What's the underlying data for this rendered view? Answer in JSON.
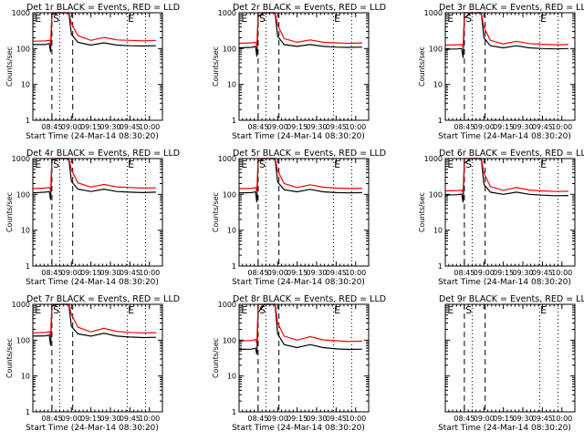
{
  "chart_data": [
    {
      "type": "line",
      "title": "Det 1r BLACK = Events, RED = LLD",
      "xlabel": "Start Time (24-Mar-14 08:30:20)",
      "ylabel": "Counts/sec",
      "yscale": "log",
      "ylim": [
        1,
        1000
      ],
      "y_ticks": [
        "1",
        "10",
        "100",
        "1000"
      ],
      "x_ticks": [
        "08:45",
        "09:00",
        "09:15",
        "09:30",
        "09:45",
        "10:00"
      ],
      "markers": [
        "E",
        "S",
        "E"
      ],
      "series": [
        {
          "name": "Events",
          "color": "#000000",
          "x": [
            "08:30",
            "08:40",
            "08:43",
            "08:44",
            "08:45",
            "08:50",
            "08:55",
            "08:58",
            "09:00",
            "09:05",
            "09:15",
            "09:25",
            "09:35",
            "09:45",
            "09:55",
            "10:05"
          ],
          "values": [
            130,
            130,
            140,
            80,
            900,
            1000,
            1000,
            1000,
            250,
            150,
            125,
            145,
            125,
            120,
            118,
            120
          ]
        },
        {
          "name": "LLD",
          "color": "#ff0000",
          "x": [
            "08:30",
            "08:40",
            "08:43",
            "08:44",
            "08:45",
            "08:50",
            "08:55",
            "08:58",
            "09:00",
            "09:05",
            "09:15",
            "09:25",
            "09:35",
            "09:45",
            "09:55",
            "10:05"
          ],
          "values": [
            160,
            165,
            170,
            150,
            1000,
            1000,
            1000,
            1000,
            500,
            230,
            170,
            205,
            175,
            170,
            165,
            170
          ]
        }
      ]
    },
    {
      "type": "line",
      "title": "Det 2r BLACK = Events, RED = LLD",
      "xlabel": "Start Time (24-Mar-14 08:30:20)",
      "ylabel": "Counts/sec",
      "yscale": "log",
      "ylim": [
        1,
        1000
      ],
      "y_ticks": [
        "1",
        "10",
        "100",
        "1000"
      ],
      "x_ticks": [
        "08:45",
        "09:00",
        "09:15",
        "09:30",
        "09:45",
        "10:00"
      ],
      "markers": [
        "E",
        "S",
        "E"
      ],
      "series": [
        {
          "name": "Events",
          "color": "#000000",
          "x": [
            "08:30",
            "08:40",
            "08:43",
            "08:44",
            "08:45",
            "08:50",
            "08:55",
            "08:58",
            "09:00",
            "09:05",
            "09:15",
            "09:25",
            "09:35",
            "09:45",
            "09:55",
            "10:05"
          ],
          "values": [
            105,
            108,
            115,
            60,
            800,
            1000,
            1000,
            1000,
            220,
            130,
            115,
            130,
            115,
            110,
            108,
            110
          ]
        },
        {
          "name": "LLD",
          "color": "#ff0000",
          "x": [
            "08:30",
            "08:40",
            "08:43",
            "08:44",
            "08:45",
            "08:50",
            "08:55",
            "08:58",
            "09:00",
            "09:05",
            "09:15",
            "09:25",
            "09:35",
            "09:45",
            "09:55",
            "10:05"
          ],
          "values": [
            140,
            145,
            150,
            120,
            1000,
            1000,
            1000,
            1000,
            450,
            190,
            150,
            175,
            150,
            145,
            140,
            145
          ]
        }
      ]
    },
    {
      "type": "line",
      "title": "Det 3r BLACK = Events, RED = LLD",
      "xlabel": "Start Time (24-Mar-14 08:30:20)",
      "ylabel": "Counts/sec",
      "yscale": "log",
      "ylim": [
        1,
        1000
      ],
      "y_ticks": [
        "1",
        "10",
        "100",
        "1000"
      ],
      "x_ticks": [
        "08:45",
        "09:00",
        "09:15",
        "09:30",
        "09:45",
        "10:00"
      ],
      "markers": [
        "E",
        "S",
        "E"
      ],
      "series": [
        {
          "name": "Events",
          "color": "#000000",
          "x": [
            "08:30",
            "08:40",
            "08:43",
            "08:44",
            "08:45",
            "08:50",
            "08:55",
            "08:58",
            "09:00",
            "09:05",
            "09:15",
            "09:25",
            "09:35",
            "09:45",
            "09:55",
            "10:05"
          ],
          "values": [
            95,
            98,
            100,
            55,
            700,
            1000,
            1000,
            1000,
            200,
            120,
            105,
            120,
            105,
            100,
            98,
            100
          ]
        },
        {
          "name": "LLD",
          "color": "#ff0000",
          "x": [
            "08:30",
            "08:40",
            "08:43",
            "08:44",
            "08:45",
            "08:50",
            "08:55",
            "08:58",
            "09:00",
            "09:05",
            "09:15",
            "09:25",
            "09:35",
            "09:45",
            "09:55",
            "10:05"
          ],
          "values": [
            125,
            128,
            130,
            110,
            1000,
            1000,
            1000,
            1000,
            400,
            170,
            135,
            160,
            138,
            132,
            128,
            130
          ]
        }
      ]
    },
    {
      "type": "line",
      "title": "Det 4r BLACK = Events, RED = LLD",
      "xlabel": "Start Time (24-Mar-14 08:30:20)",
      "ylabel": "Counts/sec",
      "yscale": "log",
      "ylim": [
        1,
        1000
      ],
      "y_ticks": [
        "1",
        "10",
        "100",
        "1000"
      ],
      "x_ticks": [
        "08:45",
        "09:00",
        "09:15",
        "09:30",
        "09:45",
        "10:00"
      ],
      "markers": [
        "E",
        "S",
        "E"
      ],
      "series": [
        {
          "name": "Events",
          "color": "#000000",
          "x": [
            "08:30",
            "08:40",
            "08:43",
            "08:44",
            "08:45",
            "08:50",
            "08:55",
            "08:58",
            "09:00",
            "09:05",
            "09:15",
            "09:25",
            "09:35",
            "09:45",
            "09:55",
            "10:05"
          ],
          "values": [
            110,
            115,
            120,
            70,
            900,
            1000,
            1000,
            1000,
            230,
            140,
            120,
            140,
            120,
            115,
            112,
            115
          ]
        },
        {
          "name": "LLD",
          "color": "#ff0000",
          "x": [
            "08:30",
            "08:40",
            "08:43",
            "08:44",
            "08:45",
            "08:50",
            "08:55",
            "08:58",
            "09:00",
            "09:05",
            "09:15",
            "09:25",
            "09:35",
            "09:45",
            "09:55",
            "10:05"
          ],
          "values": [
            145,
            150,
            155,
            130,
            1000,
            1000,
            1000,
            1000,
            480,
            210,
            160,
            190,
            162,
            155,
            150,
            152
          ]
        }
      ]
    },
    {
      "type": "line",
      "title": "Det 5r BLACK = Events, RED = LLD",
      "xlabel": "Start Time (24-Mar-14 08:30:20)",
      "ylabel": "Counts/sec",
      "yscale": "log",
      "ylim": [
        1,
        1000
      ],
      "y_ticks": [
        "1",
        "10",
        "100",
        "1000"
      ],
      "x_ticks": [
        "08:45",
        "09:00",
        "09:15",
        "09:30",
        "09:45",
        "10:00"
      ],
      "markers": [
        "E",
        "S",
        "E"
      ],
      "series": [
        {
          "name": "Events",
          "color": "#000000",
          "x": [
            "08:30",
            "08:40",
            "08:43",
            "08:44",
            "08:45",
            "08:50",
            "08:55",
            "08:58",
            "09:00",
            "09:05",
            "09:15",
            "09:25",
            "09:35",
            "09:45",
            "09:55",
            "10:05"
          ],
          "values": [
            110,
            112,
            118,
            60,
            850,
            1000,
            1000,
            1000,
            220,
            135,
            118,
            138,
            118,
            112,
            110,
            112
          ]
        },
        {
          "name": "LLD",
          "color": "#ff0000",
          "x": [
            "08:30",
            "08:40",
            "08:43",
            "08:44",
            "08:45",
            "08:50",
            "08:55",
            "08:58",
            "09:00",
            "09:05",
            "09:15",
            "09:25",
            "09:35",
            "09:45",
            "09:55",
            "10:05"
          ],
          "values": [
            145,
            148,
            155,
            120,
            1000,
            1000,
            1000,
            1000,
            460,
            200,
            155,
            185,
            158,
            150,
            146,
            148
          ]
        }
      ]
    },
    {
      "type": "line",
      "title": "Det 6r BLACK = Events, RED = LLD",
      "xlabel": "Start Time (24-Mar-14 08:30:20)",
      "ylabel": "Counts/sec",
      "yscale": "log",
      "ylim": [
        1,
        1000
      ],
      "y_ticks": [
        "1",
        "10",
        "100",
        "1000"
      ],
      "x_ticks": [
        "08:45",
        "09:00",
        "09:15",
        "09:30",
        "09:45",
        "10:00"
      ],
      "markers": [
        "E",
        "S",
        "E"
      ],
      "series": [
        {
          "name": "Events",
          "color": "#000000",
          "x": [
            "08:30",
            "08:40",
            "08:43",
            "08:44",
            "08:45",
            "08:50",
            "08:55",
            "08:58",
            "09:00",
            "09:05",
            "09:15",
            "09:25",
            "09:35",
            "09:45",
            "09:55",
            "10:05"
          ],
          "values": [
            95,
            98,
            102,
            60,
            750,
            1000,
            1000,
            1000,
            190,
            115,
            100,
            115,
            100,
            95,
            92,
            93
          ]
        },
        {
          "name": "LLD",
          "color": "#ff0000",
          "x": [
            "08:30",
            "08:40",
            "08:43",
            "08:44",
            "08:45",
            "08:50",
            "08:55",
            "08:58",
            "09:00",
            "09:05",
            "09:15",
            "09:25",
            "09:35",
            "09:45",
            "09:55",
            "10:05"
          ],
          "values": [
            125,
            128,
            132,
            110,
            1000,
            1000,
            1000,
            1000,
            400,
            165,
            130,
            155,
            132,
            125,
            120,
            122
          ]
        }
      ]
    },
    {
      "type": "line",
      "title": "Det 7r BLACK = Events, RED = LLD",
      "xlabel": "Start Time (24-Mar-14 08:30:20)",
      "ylabel": "Counts/sec",
      "yscale": "log",
      "ylim": [
        1,
        1000
      ],
      "y_ticks": [
        "1",
        "10",
        "100",
        "1000"
      ],
      "x_ticks": [
        "08:45",
        "09:00",
        "09:15",
        "09:30",
        "09:45",
        "10:00"
      ],
      "markers": [
        "E",
        "S",
        "E"
      ],
      "series": [
        {
          "name": "Events",
          "color": "#000000",
          "x": [
            "08:30",
            "08:40",
            "08:43",
            "08:44",
            "08:45",
            "08:50",
            "08:55",
            "08:58",
            "09:00",
            "09:05",
            "09:15",
            "09:25",
            "09:35",
            "09:45",
            "09:55",
            "10:05"
          ],
          "values": [
            130,
            132,
            140,
            70,
            900,
            1000,
            1000,
            1000,
            240,
            150,
            130,
            155,
            130,
            122,
            118,
            120
          ]
        },
        {
          "name": "LLD",
          "color": "#ff0000",
          "x": [
            "08:30",
            "08:40",
            "08:43",
            "08:44",
            "08:45",
            "08:50",
            "08:55",
            "08:58",
            "09:00",
            "09:05",
            "09:15",
            "09:25",
            "09:35",
            "09:45",
            "09:55",
            "10:05"
          ],
          "values": [
            160,
            165,
            172,
            140,
            1000,
            1000,
            1000,
            1000,
            520,
            230,
            170,
            215,
            175,
            165,
            160,
            162
          ]
        }
      ]
    },
    {
      "type": "line",
      "title": "Det 8r BLACK = Events, RED = LLD",
      "xlabel": "Start Time (24-Mar-14 08:30:20)",
      "ylabel": "Counts/sec",
      "yscale": "log",
      "ylim": [
        1,
        1000
      ],
      "y_ticks": [
        "1",
        "10",
        "100",
        "1000"
      ],
      "x_ticks": [
        "08:45",
        "09:00",
        "09:15",
        "09:30",
        "09:45",
        "10:00"
      ],
      "markers": [
        "E",
        "S",
        "E"
      ],
      "series": [
        {
          "name": "Events",
          "color": "#000000",
          "x": [
            "08:30",
            "08:40",
            "08:43",
            "08:44",
            "08:45",
            "08:50",
            "08:55",
            "08:58",
            "09:00",
            "09:05",
            "09:15",
            "09:25",
            "09:35",
            "09:45",
            "09:55",
            "10:05"
          ],
          "values": [
            55,
            56,
            60,
            40,
            600,
            1000,
            1000,
            1000,
            150,
            75,
            62,
            75,
            62,
            57,
            55,
            56
          ]
        },
        {
          "name": "LLD",
          "color": "#ff0000",
          "x": [
            "08:30",
            "08:40",
            "08:43",
            "08:44",
            "08:45",
            "08:50",
            "08:55",
            "08:58",
            "09:00",
            "09:05",
            "09:15",
            "09:25",
            "09:35",
            "09:45",
            "09:55",
            "10:05"
          ],
          "values": [
            95,
            98,
            105,
            80,
            1000,
            1000,
            1000,
            1000,
            300,
            130,
            100,
            125,
            102,
            96,
            92,
            94
          ]
        }
      ]
    },
    {
      "type": "line",
      "title": "Det 9r BLACK = Events, RED = LLD",
      "xlabel": "Start Time (24-Mar-14 08:30:20)",
      "ylabel": "",
      "yscale": "log",
      "ylim": [
        1,
        1000
      ],
      "y_ticks": [
        "",
        "",
        "",
        ""
      ],
      "x_ticks": [
        "08:45",
        "09:00",
        "09:15",
        "09:30",
        "09:45",
        "10:00"
      ],
      "markers": [
        "E",
        "S",
        "E"
      ],
      "series": []
    }
  ]
}
